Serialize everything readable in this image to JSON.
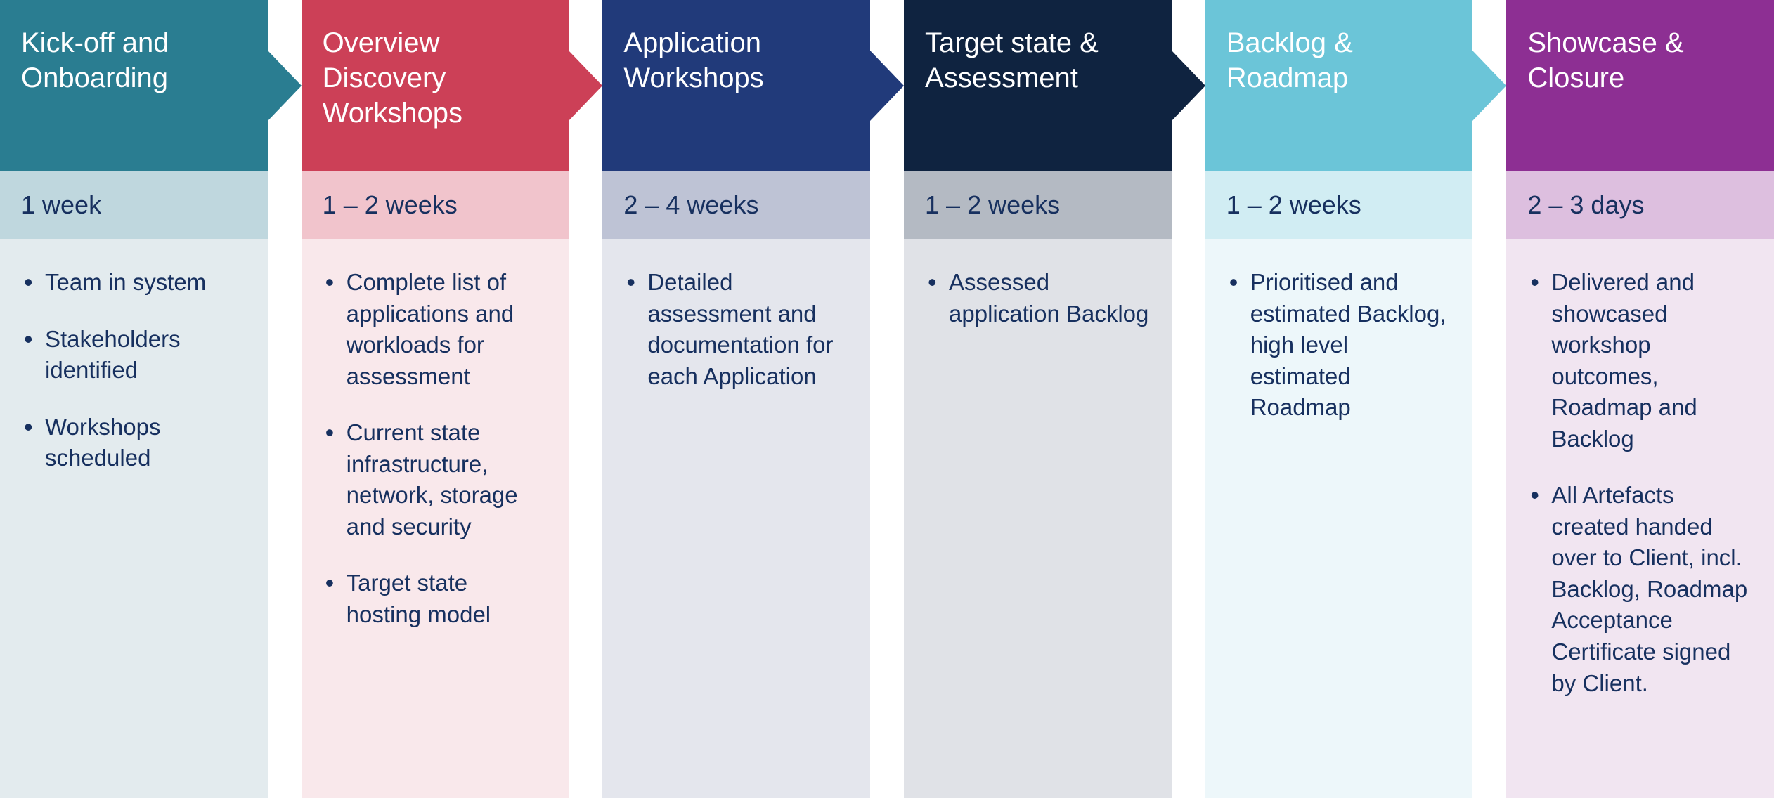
{
  "text_color": "#17305f",
  "stages": [
    {
      "title": "Kick-off and Onboarding",
      "duration": "1 week",
      "bullets": [
        "Team in system",
        "Stakeholders identified",
        "Workshops scheduled"
      ],
      "colors": {
        "header": "#2a7d91",
        "duration_bg": "#bfd7de",
        "details_bg": "#e3ebee"
      }
    },
    {
      "title": "Overview Discovery Workshops",
      "duration": "1 – 2 weeks",
      "bullets": [
        "Complete list of applications and workloads for assessment",
        "Current state infrastructure, network, storage and security",
        "Target state hosting model"
      ],
      "colors": {
        "header": "#cc4057",
        "duration_bg": "#f1c4cc",
        "details_bg": "#f9e8eb"
      }
    },
    {
      "title": "Application Workshops",
      "duration": "2 – 4 weeks",
      "bullets": [
        "Detailed assessment and documentation for each Application"
      ],
      "colors": {
        "header": "#213a7a",
        "duration_bg": "#bec3d5",
        "details_bg": "#e4e6ed"
      }
    },
    {
      "title": "Target state & Assessment",
      "duration": "1 – 2 weeks",
      "bullets": [
        "Assessed application Backlog"
      ],
      "colors": {
        "header": "#0f2340",
        "duration_bg": "#b4bac3",
        "details_bg": "#e0e2e7"
      }
    },
    {
      "title": "Backlog & Roadmap",
      "duration": "1 – 2 weeks",
      "bullets": [
        "Prioritised and estimated Backlog, high level estimated Roadmap"
      ],
      "colors": {
        "header": "#6bc5d8",
        "duration_bg": "#d1edf3",
        "details_bg": "#edf7fa"
      }
    },
    {
      "title": "Showcase & Closure",
      "duration": "2 – 3 days",
      "bullets": [
        "Delivered and showcased workshop outcomes, Roadmap and Backlog",
        "All Artefacts created handed over to Client, incl. Backlog, Roadmap Acceptance Certificate signed by Client."
      ],
      "colors": {
        "header": "#8d2f93",
        "duration_bg": "#ddbfdf",
        "details_bg": "#f1e5f1"
      }
    }
  ]
}
